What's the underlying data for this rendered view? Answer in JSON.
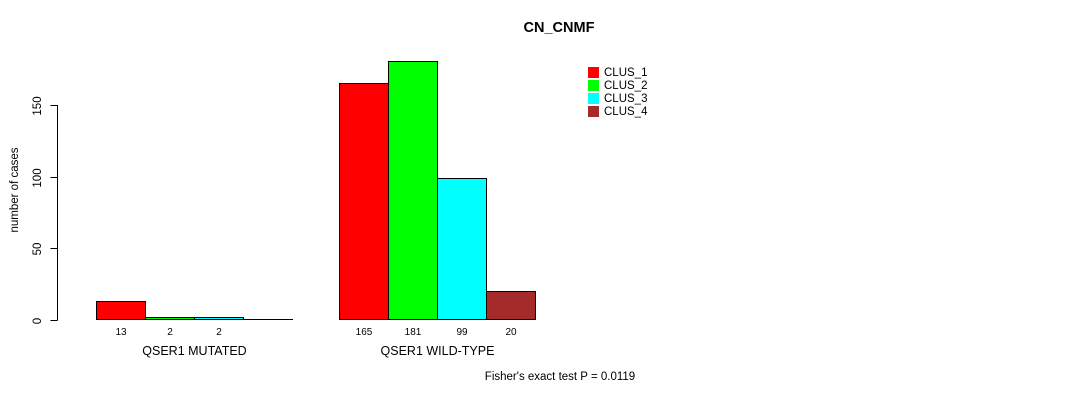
{
  "chart_data": {
    "type": "bar",
    "title": "CN_CNMF",
    "ylabel": "number of cases",
    "xlabel": "",
    "categories": [
      "QSER1 MUTATED",
      "QSER1 WILD-TYPE"
    ],
    "series": [
      {
        "name": "CLUS_1",
        "color": "#ff0000",
        "values": [
          13,
          165
        ]
      },
      {
        "name": "CLUS_2",
        "color": "#00ff00",
        "values": [
          2,
          181
        ]
      },
      {
        "name": "CLUS_3",
        "color": "#00ffff",
        "values": [
          2,
          99
        ]
      },
      {
        "name": "CLUS_4",
        "color": "#a52a2a",
        "values": [
          0,
          20
        ]
      }
    ],
    "bar_labels": [
      [
        "13",
        "2",
        "2",
        ""
      ],
      [
        "165",
        "181",
        "99",
        "20"
      ]
    ],
    "yticks": [
      0,
      50,
      100,
      150
    ],
    "ylim": [
      0,
      181
    ],
    "grid": false,
    "legend_position": "top-right",
    "annotation": "Fisher's exact test P = 0.0119"
  }
}
